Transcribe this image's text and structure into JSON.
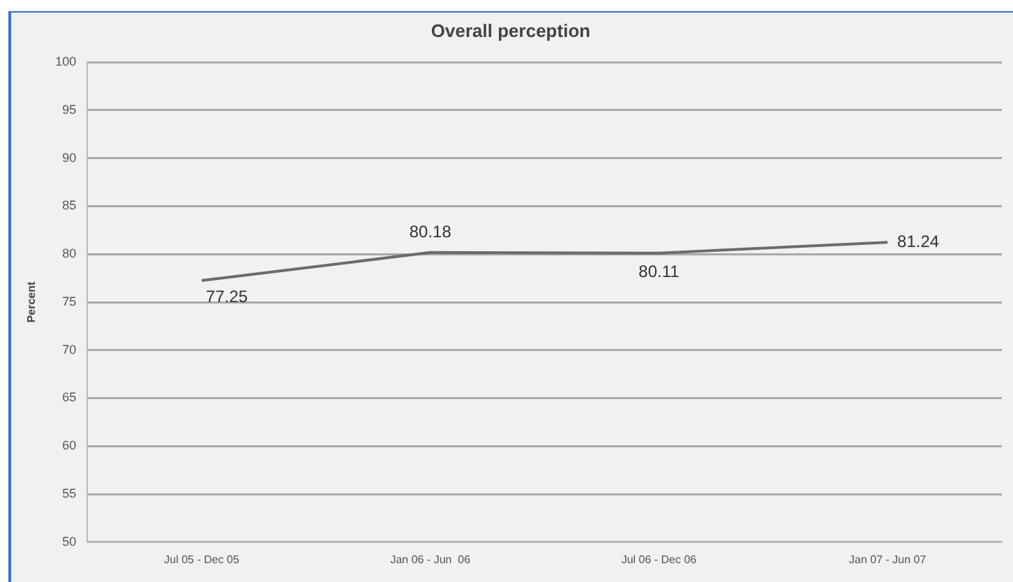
{
  "chart_data": {
    "type": "line",
    "title": "Overall perception",
    "ylabel": "Percent",
    "categories": [
      "Jul 05 - Dec 05",
      "Jan 06 - Jun  06",
      "Jul 06 - Dec 06",
      "Jan 07 - Jun 07"
    ],
    "series": [
      {
        "color": "#6b6b6b",
        "values": [
          77.25,
          80.18,
          80.11,
          81.24
        ]
      }
    ],
    "ylim": [
      50,
      100
    ],
    "yticks": [
      50,
      55,
      60,
      65,
      70,
      75,
      80,
      85,
      90,
      95,
      100
    ],
    "grid": "y",
    "legend": false,
    "marker": "none",
    "line_style": "solid",
    "data_labels": true
  }
}
